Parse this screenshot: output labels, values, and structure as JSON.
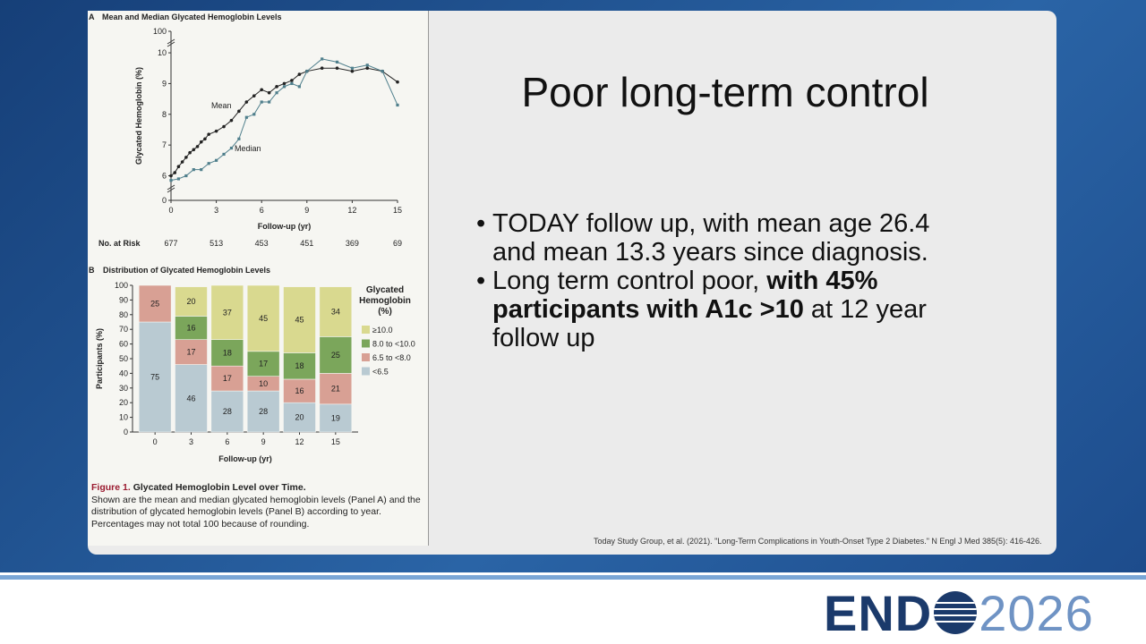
{
  "slide": {
    "title": "Poor long-term control",
    "bullets": [
      [
        {
          "text": "TODAY follow up, with mean age 26.4 and mean 13.3 years since diagnosis.",
          "bold": false
        }
      ],
      [
        {
          "text": "Long term control poor, ",
          "bold": false
        },
        {
          "text": "with 45% participants with A1c >10",
          "bold": true
        },
        {
          "text": " at 12 year follow up",
          "bold": false
        }
      ]
    ],
    "citation": "Today Study Group, et al. (2021). \"Long-Term Complications in Youth-Onset Type 2 Diabetes.\" N Engl J Med 385(5): 416-426."
  },
  "figure": {
    "label": "Figure 1.",
    "title": "Glycated Hemoglobin Level over Time.",
    "caption": "Shown are the mean and median glycated hemoglobin levels (Panel A) and the distribution of glycated hemoglobin levels (Panel B) according to year. Percentages may not total 100 because of rounding."
  },
  "logo": {
    "prefix": "END",
    "suffix": "2026"
  },
  "chart_data": [
    {
      "type": "line",
      "panel": "A",
      "title": "Mean and Median Glycated Hemoglobin Levels",
      "xlabel": "Follow-up (yr)",
      "ylabel": "Glycated Hemoglobin (%)",
      "xlim": [
        0,
        15
      ],
      "xticks": [
        0,
        3,
        6,
        9,
        12,
        15
      ],
      "ylim": [
        5.2,
        10.7
      ],
      "yticks": [
        6,
        7,
        8,
        9,
        10
      ],
      "axis_break_ticks": [
        0,
        100
      ],
      "series": [
        {
          "name": "Mean",
          "color": "#222222",
          "x": [
            0,
            0.25,
            0.5,
            0.75,
            1,
            1.25,
            1.5,
            1.75,
            2,
            2.25,
            2.5,
            3,
            3.5,
            4,
            4.5,
            5,
            5.5,
            6,
            6.5,
            7,
            7.5,
            8,
            8.5,
            9,
            10,
            11,
            12,
            13,
            14,
            15
          ],
          "values": [
            6.0,
            6.1,
            6.3,
            6.45,
            6.6,
            6.75,
            6.85,
            6.95,
            7.1,
            7.2,
            7.35,
            7.45,
            7.6,
            7.8,
            8.1,
            8.4,
            8.6,
            8.8,
            8.7,
            8.9,
            9.0,
            9.1,
            9.3,
            9.4,
            9.5,
            9.5,
            9.4,
            9.5,
            9.4,
            9.05
          ]
        },
        {
          "name": "Median",
          "color": "#4f7f8c",
          "x": [
            0,
            0.5,
            1,
            1.5,
            2,
            2.5,
            3,
            3.5,
            4,
            4.5,
            5,
            5.5,
            6,
            6.5,
            7,
            7.5,
            8,
            8.5,
            9,
            10,
            11,
            12,
            13,
            14,
            15
          ],
          "values": [
            5.85,
            5.9,
            6.0,
            6.2,
            6.2,
            6.4,
            6.5,
            6.7,
            6.9,
            7.2,
            7.9,
            8.0,
            8.4,
            8.4,
            8.7,
            8.9,
            9.0,
            8.9,
            9.4,
            9.8,
            9.7,
            9.5,
            9.6,
            9.4,
            8.3
          ]
        }
      ],
      "at_risk": {
        "label": "No. at Risk",
        "values": [
          677,
          513,
          453,
          451,
          369,
          69
        ]
      }
    },
    {
      "type": "stacked_bar",
      "panel": "B",
      "title": "Distribution of Glycated Hemoglobin Levels",
      "xlabel": "Follow-up (yr)",
      "ylabel": "Participants (%)",
      "legend_title": "Glycated Hemoglobin (%)",
      "categories": [
        "0",
        "3",
        "6",
        "9",
        "12",
        "15"
      ],
      "ylim": [
        0,
        100
      ],
      "yticks": [
        0,
        10,
        20,
        30,
        40,
        50,
        60,
        70,
        80,
        90,
        100
      ],
      "series": [
        {
          "name": "<6.5",
          "color": "#b9cad2",
          "values": [
            75,
            46,
            28,
            28,
            20,
            19
          ]
        },
        {
          "name": "6.5 to <8.0",
          "color": "#d8a094",
          "values": [
            25,
            17,
            17,
            10,
            16,
            21
          ]
        },
        {
          "name": "8.0 to <10.0",
          "color": "#7ba65b",
          "values": [
            null,
            16,
            18,
            17,
            18,
            25
          ]
        },
        {
          "name": "≥10.0",
          "color": "#d9d98f",
          "values": [
            null,
            20,
            37,
            45,
            45,
            34
          ]
        }
      ]
    }
  ]
}
